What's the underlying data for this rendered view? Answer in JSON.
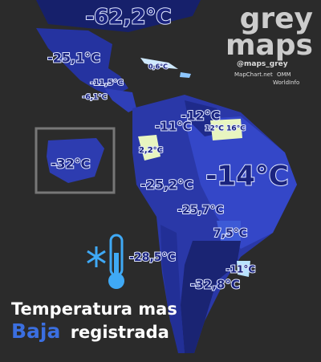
{
  "brand": {
    "line1": "grey",
    "line2": "maps",
    "handle": "@maps_grey",
    "source1": "MapChart.net",
    "source2": "OMM",
    "source3": "WorldInfo"
  },
  "title": {
    "line1": "Temperatura mas",
    "highlight": "Baja",
    "rest": "registrada"
  },
  "labels": [
    "-62,2°C",
    "-25,1°C",
    "-11,5°C",
    "0,6°C",
    "-6,1°C",
    "-12°C",
    "-11°C",
    "12°C",
    "16°C",
    "2,2°C",
    "-32°C",
    "-25,2°C",
    "-14°C",
    "-25,7°C",
    "7,5°C",
    "-28,5°C",
    "-11°C",
    "-32,8°C"
  ]
}
